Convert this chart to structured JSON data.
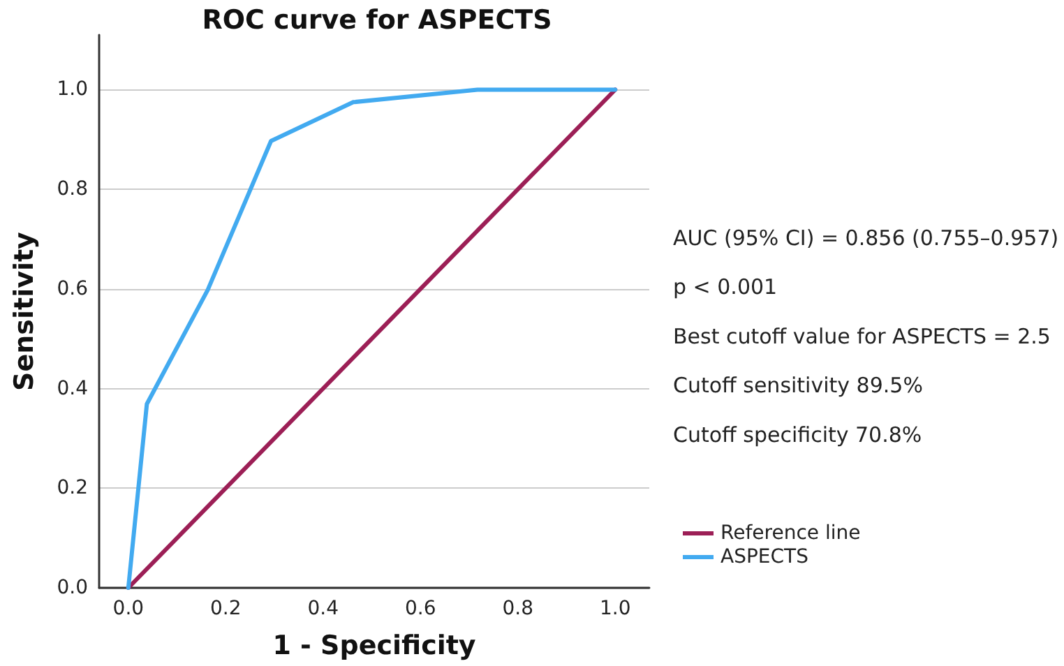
{
  "chart_data": {
    "type": "line",
    "title": "ROC curve for ASPECTS",
    "xlabel": "1 - Specificity",
    "ylabel": "Sensitivity",
    "xlim": [
      -0.06,
      1.07
    ],
    "xticks": [
      {
        "value": 0,
        "label": "0.0"
      },
      {
        "value": 0.2,
        "label": "0.2"
      },
      {
        "value": 0.4,
        "label": "0.4"
      },
      {
        "value": 0.6,
        "label": "0.6"
      },
      {
        "value": 0.8,
        "label": "0.8"
      },
      {
        "value": 1,
        "label": "1.0"
      }
    ],
    "ylim": [
      0,
      1.11
    ],
    "yticks": [
      {
        "value": 0,
        "label": "0.0"
      },
      {
        "value": 0.2,
        "label": "0.2"
      },
      {
        "value": 0.4,
        "label": "0.4"
      },
      {
        "value": 0.6,
        "label": "0.6"
      },
      {
        "value": 0.8,
        "label": "0.8"
      },
      {
        "value": 1,
        "label": "1.0"
      }
    ],
    "series": [
      {
        "name": "Reference line",
        "color": "#9c1f56",
        "x": [
          0,
          1
        ],
        "values": [
          0,
          1
        ]
      },
      {
        "name": "ASPECTS",
        "color": "#42aaf0",
        "x": [
          0,
          0.038,
          0.163,
          0.293,
          0.462,
          0.717,
          1
        ],
        "values": [
          0,
          0.369,
          0.598,
          0.897,
          0.975,
          1,
          1
        ]
      }
    ],
    "annotations": [
      "AUC (95% CI) = 0.856 (0.755–0.957)",
      "p < 0.001",
      "Best cutoff value for ASPECTS = 2.5",
      "Cutoff sensitivity 89.5%",
      "Cutoff specificity 70.8%"
    ],
    "grid": "y",
    "legend": "right",
    "marker": "none",
    "line_style": "solid"
  }
}
